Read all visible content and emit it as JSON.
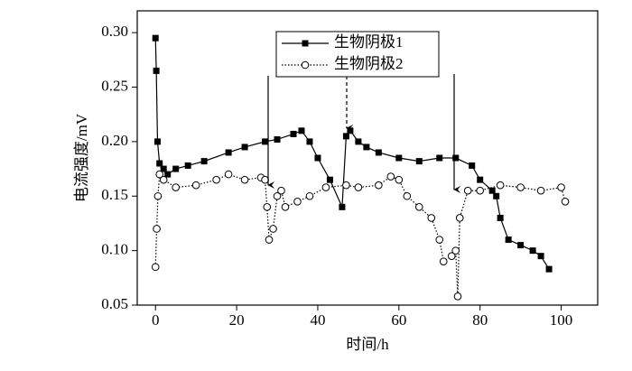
{
  "chart_data": {
    "type": "line",
    "xlabel": "时间/h",
    "ylabel": "电流强度/mV",
    "xlim": [
      -4.5,
      109
    ],
    "ylim": [
      0.05,
      0.32
    ],
    "xticks": [
      0,
      20,
      40,
      60,
      80,
      100
    ],
    "yticks": [
      0.05,
      {
        "value": 0.1,
        "label": "0.10"
      },
      0.15,
      {
        "value": 0.2,
        "label": "0.20"
      },
      0.25,
      {
        "value": 0.3,
        "label": "0.30"
      }
    ],
    "legend": "upper center",
    "series": [
      {
        "name": "生物阴极1",
        "color": "#000000",
        "marker": "square",
        "line_style": "solid",
        "x": [
          0,
          0.2,
          0.5,
          1,
          2,
          3,
          5,
          8,
          12,
          18,
          22,
          27,
          30,
          34,
          36,
          38,
          40,
          43,
          46,
          47,
          48,
          50,
          52,
          55,
          60,
          65,
          70,
          74,
          78,
          80,
          83,
          84,
          85,
          87,
          90,
          93,
          95,
          97
        ],
        "values": [
          0.295,
          0.265,
          0.2,
          0.18,
          0.175,
          0.17,
          0.175,
          0.178,
          0.182,
          0.19,
          0.195,
          0.2,
          0.202,
          0.207,
          0.21,
          0.2,
          0.185,
          0.165,
          0.14,
          0.205,
          0.21,
          0.2,
          0.195,
          0.19,
          0.185,
          0.182,
          0.185,
          0.185,
          0.178,
          0.165,
          0.155,
          0.15,
          0.13,
          0.11,
          0.105,
          0.1,
          0.095,
          0.083
        ]
      },
      {
        "name": "生物阴极2",
        "color": "#000000",
        "marker": "circle",
        "line_style": "dotted",
        "x": [
          0,
          0.3,
          0.6,
          1,
          2,
          5,
          10,
          15,
          18,
          22,
          26,
          27,
          27.5,
          28,
          29,
          30,
          31,
          32,
          35,
          38,
          42,
          47,
          50,
          55,
          58,
          60,
          62,
          65,
          68,
          70,
          71,
          73,
          74,
          74.5,
          75,
          77,
          80,
          85,
          90,
          95,
          100,
          101
        ],
        "values": [
          0.085,
          0.12,
          0.15,
          0.17,
          0.165,
          0.158,
          0.16,
          0.165,
          0.17,
          0.165,
          0.167,
          0.165,
          0.14,
          0.11,
          0.12,
          0.15,
          0.155,
          0.14,
          0.145,
          0.15,
          0.158,
          0.16,
          0.158,
          0.16,
          0.168,
          0.165,
          0.15,
          0.14,
          0.13,
          0.11,
          0.09,
          0.095,
          0.1,
          0.058,
          0.13,
          0.155,
          0.155,
          0.16,
          0.158,
          0.155,
          0.158,
          0.145
        ]
      }
    ]
  }
}
